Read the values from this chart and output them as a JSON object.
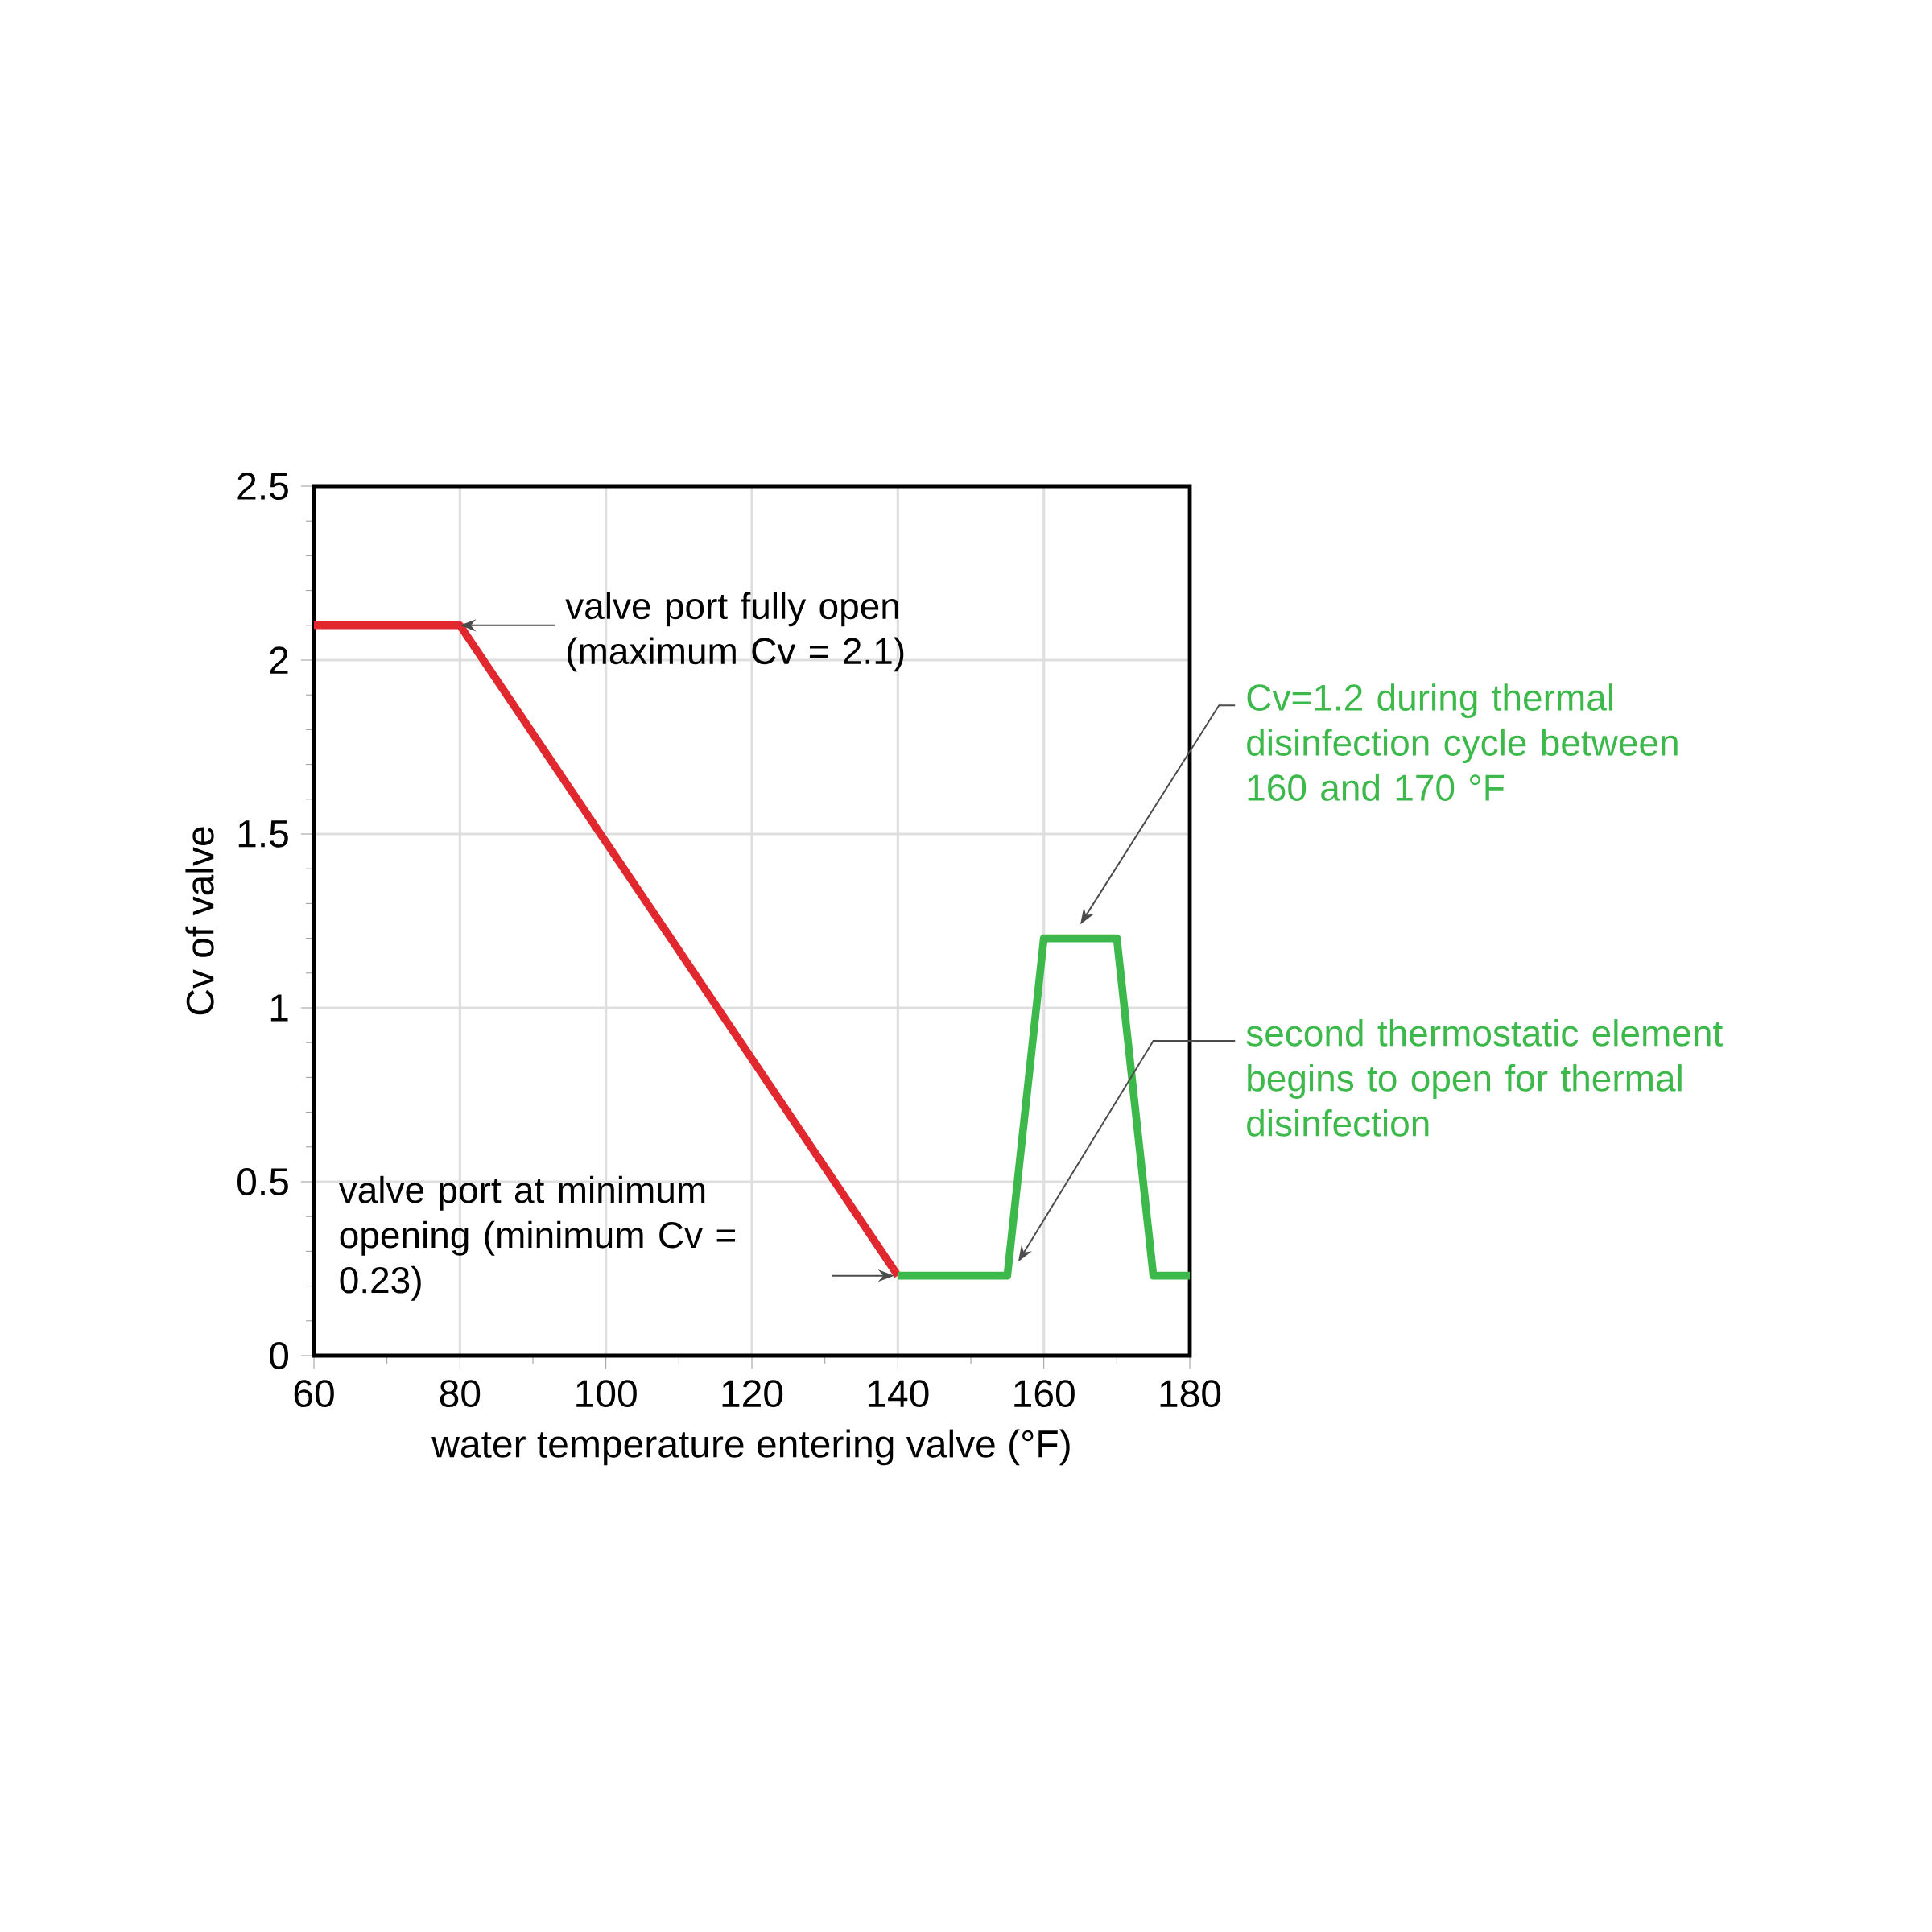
{
  "chart_data": {
    "type": "line",
    "xlabel": "water temperature entering valve (°F)",
    "ylabel": "Cv of valve",
    "xlim": [
      60,
      180
    ],
    "ylim": [
      0,
      2.5
    ],
    "xticks": [
      60,
      80,
      100,
      120,
      140,
      160,
      180
    ],
    "yticks": [
      0,
      0.5,
      1,
      1.5,
      2,
      2.5
    ],
    "grid": true,
    "series": [
      {
        "color": "#e0282e",
        "x": [
          60,
          80,
          140
        ],
        "values": [
          2.1,
          2.1,
          0.23
        ]
      },
      {
        "color": "#3cb94a",
        "x": [
          140,
          155,
          160,
          170,
          175,
          180
        ],
        "values": [
          0.23,
          0.23,
          1.2,
          1.2,
          0.23,
          0.23
        ]
      }
    ],
    "annotations": [
      {
        "text": "valve port fully open (maximum Cv = 2.1)",
        "x": 80,
        "y": 2.1
      },
      "valve port at minimum opening (minimum Cv = 0.23)",
      "Cv=1.2 during thermal disinfection cycle between 160 and 170 °F",
      "second thermostatic element begins to open for thermal disinfection"
    ]
  }
}
